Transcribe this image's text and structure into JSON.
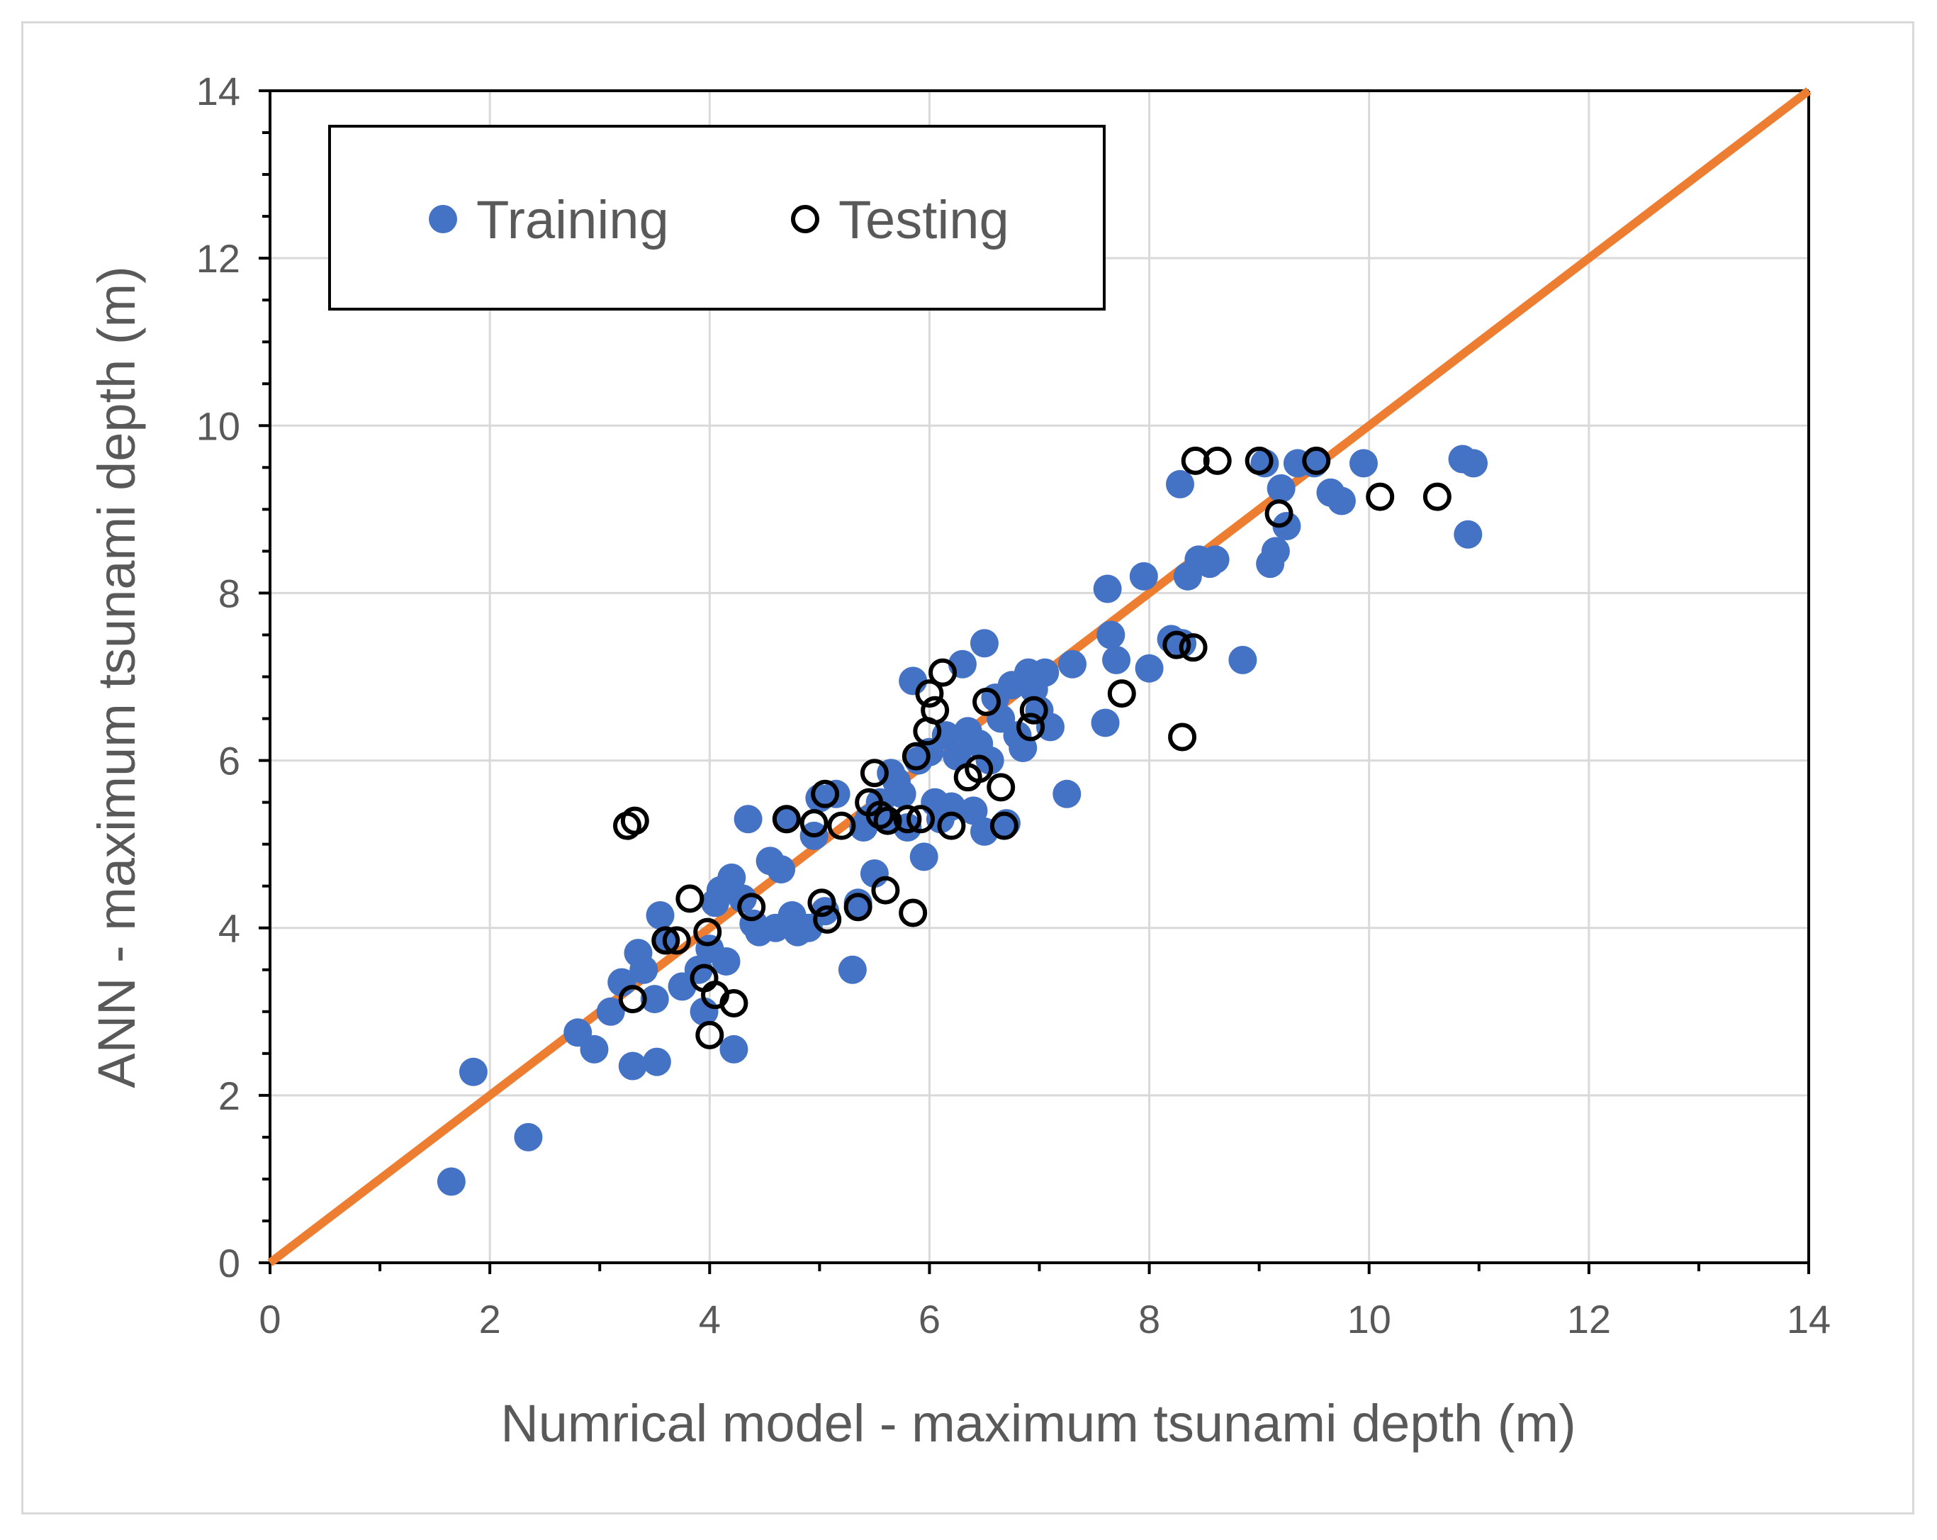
{
  "chart_data": {
    "type": "scatter",
    "title": "",
    "xlabel": "Numrical model - maximum tsunami depth (m)",
    "ylabel": "ANN - maximum tsunami depth (m)",
    "xlim": [
      0,
      14
    ],
    "ylim": [
      0,
      14
    ],
    "xticks": [
      "0",
      "2",
      "4",
      "6",
      "8",
      "10",
      "12",
      "14"
    ],
    "yticks": [
      "0",
      "2",
      "4",
      "6",
      "8",
      "10",
      "12",
      "14"
    ],
    "grid": true,
    "legend_position": "top-left",
    "reference_line": {
      "name": "1:1 line",
      "from": [
        0,
        0
      ],
      "to": [
        14,
        14
      ],
      "color": "#ED7D31"
    },
    "series": [
      {
        "name": "Training",
        "marker": "filled-circle",
        "color": "#4472C4",
        "points": [
          [
            1.65,
            0.97
          ],
          [
            1.85,
            2.28
          ],
          [
            2.35,
            1.5
          ],
          [
            2.8,
            2.75
          ],
          [
            2.95,
            2.55
          ],
          [
            3.1,
            3.0
          ],
          [
            3.2,
            3.35
          ],
          [
            3.3,
            2.35
          ],
          [
            3.35,
            3.7
          ],
          [
            3.4,
            3.5
          ],
          [
            3.5,
            3.15
          ],
          [
            3.52,
            2.4
          ],
          [
            3.55,
            4.15
          ],
          [
            3.6,
            3.85
          ],
          [
            3.75,
            3.3
          ],
          [
            3.9,
            3.5
          ],
          [
            3.95,
            3.0
          ],
          [
            4.0,
            3.75
          ],
          [
            4.05,
            4.3
          ],
          [
            4.1,
            4.45
          ],
          [
            4.15,
            3.6
          ],
          [
            4.2,
            4.6
          ],
          [
            4.22,
            2.55
          ],
          [
            4.3,
            4.35
          ],
          [
            4.35,
            5.3
          ],
          [
            4.4,
            4.05
          ],
          [
            4.45,
            3.95
          ],
          [
            4.55,
            4.8
          ],
          [
            4.6,
            4.0
          ],
          [
            4.65,
            4.7
          ],
          [
            4.7,
            5.3
          ],
          [
            4.75,
            4.15
          ],
          [
            4.8,
            3.95
          ],
          [
            4.9,
            4.0
          ],
          [
            4.95,
            5.1
          ],
          [
            5.0,
            5.55
          ],
          [
            5.05,
            4.2
          ],
          [
            5.15,
            5.6
          ],
          [
            5.3,
            3.5
          ],
          [
            5.35,
            4.3
          ],
          [
            5.4,
            5.2
          ],
          [
            5.45,
            5.3
          ],
          [
            5.5,
            4.65
          ],
          [
            5.55,
            5.5
          ],
          [
            5.6,
            5.3
          ],
          [
            5.65,
            5.85
          ],
          [
            5.7,
            5.75
          ],
          [
            5.75,
            5.6
          ],
          [
            5.8,
            5.2
          ],
          [
            5.85,
            6.95
          ],
          [
            5.9,
            6.0
          ],
          [
            5.95,
            4.85
          ],
          [
            6.0,
            6.1
          ],
          [
            6.05,
            5.5
          ],
          [
            6.1,
            5.3
          ],
          [
            6.15,
            6.3
          ],
          [
            6.2,
            5.45
          ],
          [
            6.25,
            6.05
          ],
          [
            6.3,
            7.15
          ],
          [
            6.35,
            6.35
          ],
          [
            6.4,
            5.4
          ],
          [
            6.45,
            6.2
          ],
          [
            6.5,
            7.4
          ],
          [
            6.5,
            5.15
          ],
          [
            6.55,
            6.0
          ],
          [
            6.6,
            6.75
          ],
          [
            6.65,
            6.5
          ],
          [
            6.7,
            5.25
          ],
          [
            6.75,
            6.9
          ],
          [
            6.8,
            6.3
          ],
          [
            6.85,
            6.15
          ],
          [
            6.9,
            7.05
          ],
          [
            6.95,
            6.85
          ],
          [
            7.0,
            6.6
          ],
          [
            7.05,
            7.05
          ],
          [
            7.1,
            6.4
          ],
          [
            7.25,
            5.6
          ],
          [
            7.3,
            7.15
          ],
          [
            7.6,
            6.45
          ],
          [
            7.62,
            8.05
          ],
          [
            7.65,
            7.5
          ],
          [
            7.7,
            7.2
          ],
          [
            7.95,
            8.2
          ],
          [
            8.0,
            7.1
          ],
          [
            8.2,
            7.45
          ],
          [
            8.28,
            9.3
          ],
          [
            8.3,
            7.4
          ],
          [
            8.35,
            8.2
          ],
          [
            8.45,
            8.4
          ],
          [
            8.55,
            8.35
          ],
          [
            8.6,
            8.4
          ],
          [
            8.85,
            7.2
          ],
          [
            9.05,
            9.55
          ],
          [
            9.1,
            8.35
          ],
          [
            9.15,
            8.5
          ],
          [
            9.2,
            9.25
          ],
          [
            9.25,
            8.8
          ],
          [
            9.35,
            9.55
          ],
          [
            9.5,
            9.55
          ],
          [
            9.65,
            9.2
          ],
          [
            9.75,
            9.1
          ],
          [
            9.95,
            9.55
          ],
          [
            10.85,
            9.6
          ],
          [
            10.9,
            8.7
          ],
          [
            10.95,
            9.55
          ]
        ]
      },
      {
        "name": "Testing",
        "marker": "open-circle",
        "color": "#000000",
        "points": [
          [
            3.25,
            5.22
          ],
          [
            3.32,
            5.28
          ],
          [
            3.3,
            3.15
          ],
          [
            3.6,
            3.85
          ],
          [
            3.7,
            3.85
          ],
          [
            3.82,
            4.35
          ],
          [
            3.95,
            3.4
          ],
          [
            3.98,
            3.95
          ],
          [
            4.0,
            2.72
          ],
          [
            4.05,
            3.2
          ],
          [
            4.22,
            3.1
          ],
          [
            4.38,
            4.25
          ],
          [
            4.7,
            5.3
          ],
          [
            4.95,
            5.25
          ],
          [
            5.02,
            4.3
          ],
          [
            5.05,
            5.6
          ],
          [
            5.07,
            4.1
          ],
          [
            5.2,
            5.22
          ],
          [
            5.35,
            4.25
          ],
          [
            5.45,
            5.5
          ],
          [
            5.5,
            5.85
          ],
          [
            5.55,
            5.35
          ],
          [
            5.6,
            4.45
          ],
          [
            5.62,
            5.28
          ],
          [
            5.8,
            5.3
          ],
          [
            5.85,
            4.18
          ],
          [
            5.88,
            6.05
          ],
          [
            5.92,
            5.3
          ],
          [
            5.98,
            6.35
          ],
          [
            6.0,
            6.8
          ],
          [
            6.05,
            6.6
          ],
          [
            6.12,
            7.05
          ],
          [
            6.2,
            5.22
          ],
          [
            6.35,
            5.8
          ],
          [
            6.45,
            5.9
          ],
          [
            6.52,
            6.7
          ],
          [
            6.65,
            5.68
          ],
          [
            6.68,
            5.22
          ],
          [
            6.92,
            6.4
          ],
          [
            6.95,
            6.6
          ],
          [
            7.75,
            6.8
          ],
          [
            8.25,
            7.38
          ],
          [
            8.3,
            6.28
          ],
          [
            8.4,
            7.35
          ],
          [
            8.42,
            9.58
          ],
          [
            8.62,
            9.58
          ],
          [
            9.0,
            9.58
          ],
          [
            9.18,
            8.95
          ],
          [
            9.52,
            9.58
          ],
          [
            10.1,
            9.15
          ],
          [
            10.62,
            9.15
          ]
        ]
      }
    ]
  },
  "legend": {
    "training_label": "Training",
    "testing_label": "Testing"
  }
}
